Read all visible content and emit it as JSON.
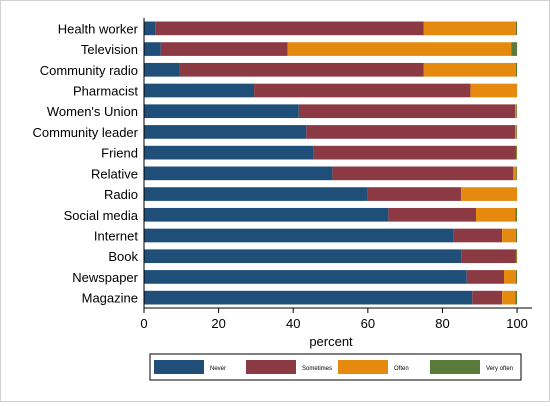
{
  "chart_data": {
    "type": "bar",
    "orientation": "horizontal",
    "stacked": true,
    "categories": [
      "Health worker",
      "Television",
      "Community radio",
      "Pharmacist",
      "Women's Union",
      "Community leader",
      "Friend",
      "Relative",
      "Radio",
      "Social media",
      "Internet",
      "Book",
      "Newspaper",
      "Magazine"
    ],
    "series": [
      {
        "name": "Never",
        "color": "#1f4e79",
        "values": [
          3,
          4.5,
          9.5,
          29.5,
          41.5,
          43.5,
          45.5,
          50.5,
          60,
          65.5,
          83,
          85,
          86.5,
          88
        ]
      },
      {
        "name": "Sometimes",
        "color": "#8b3a44",
        "values": [
          72,
          34,
          65.5,
          58,
          58,
          56,
          54.2,
          48.5,
          25,
          23.5,
          13,
          14.7,
          10,
          8
        ]
      },
      {
        "name": "Often",
        "color": "#e58a0e",
        "values": [
          24.7,
          60,
          24.7,
          12.5,
          0.3,
          0.3,
          0.1,
          0.8,
          15,
          10.5,
          3.7,
          0.1,
          3.2,
          3.5
        ]
      },
      {
        "name": "Very often",
        "color": "#5a7a3a",
        "values": [
          0.3,
          1.5,
          0.3,
          0,
          0.2,
          0.2,
          0.2,
          0.2,
          0,
          0.5,
          0.3,
          0.2,
          0.3,
          0.5
        ]
      }
    ],
    "x_ticks": [
      0,
      20,
      40,
      60,
      80,
      100
    ],
    "xlabel": "percent",
    "xlim": [
      0,
      104
    ],
    "grid": false,
    "legend_position": "bottom"
  }
}
